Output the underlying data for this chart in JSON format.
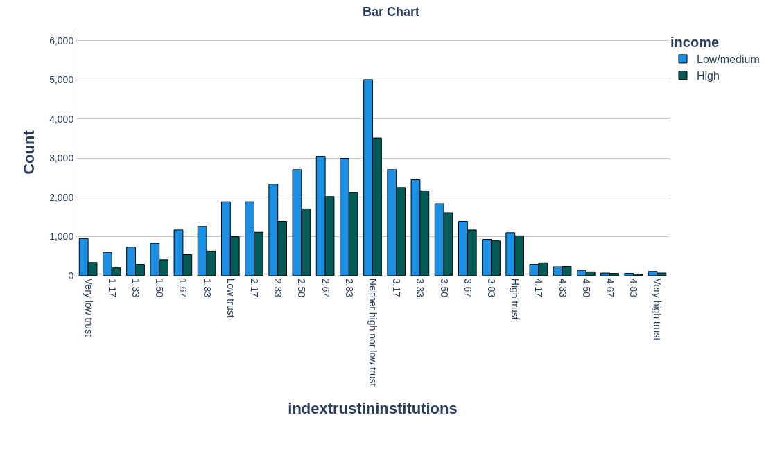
{
  "chart_data": {
    "type": "bar",
    "title": "Bar Chart",
    "xlabel": "indextrustininstitutions",
    "ylabel": "Count",
    "legend_title": "income",
    "categories": [
      "Very low trust",
      "1.17",
      "1.33",
      "1.50",
      "1.67",
      "1.83",
      "Low trust",
      "2.17",
      "2.33",
      "2.50",
      "2.67",
      "2.83",
      "Neither high nor low trust",
      "3.17",
      "3.33",
      "3.50",
      "3.67",
      "3.83",
      "High trust",
      "4.17",
      "4.33",
      "4.50",
      "4.67",
      "4.83",
      "Very high trust"
    ],
    "series": [
      {
        "name": "Low/medium",
        "color": "#1a8fe3",
        "values": [
          950,
          600,
          730,
          830,
          1170,
          1260,
          1890,
          1890,
          2340,
          2710,
          3050,
          3000,
          5010,
          2710,
          2450,
          1840,
          1390,
          930,
          1100,
          290,
          230,
          140,
          70,
          60,
          110
        ]
      },
      {
        "name": "High",
        "color": "#005a55",
        "values": [
          340,
          200,
          290,
          410,
          540,
          630,
          1000,
          1110,
          1390,
          1710,
          2020,
          2130,
          3520,
          2250,
          2170,
          1610,
          1170,
          890,
          1020,
          330,
          240,
          100,
          60,
          40,
          70
        ]
      }
    ],
    "ylim": [
      0,
      6300
    ],
    "yticks": [
      {
        "value": 0,
        "label": "0"
      },
      {
        "value": 1000,
        "label": "1,000"
      },
      {
        "value": 2000,
        "label": "2,000"
      },
      {
        "value": 3000,
        "label": "3,000"
      },
      {
        "value": 4000,
        "label": "4,000"
      },
      {
        "value": 5000,
        "label": "5,000"
      },
      {
        "value": 6000,
        "label": "6,000"
      }
    ],
    "grid": "y",
    "legend": "top right"
  }
}
